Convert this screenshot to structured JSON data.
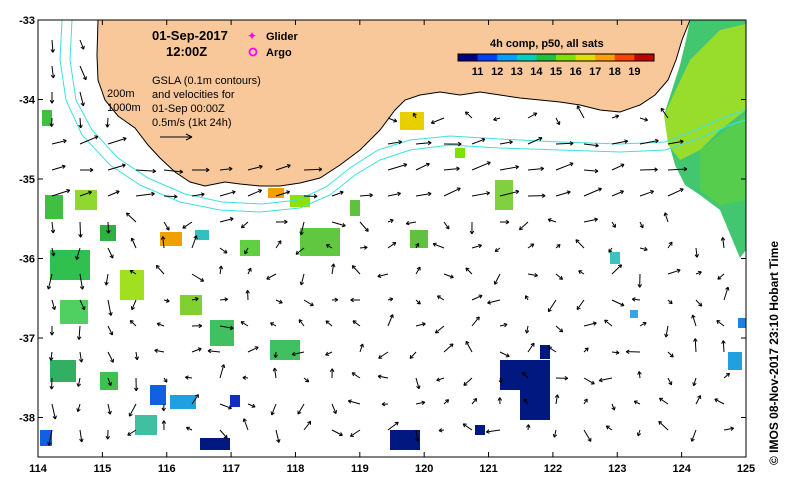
{
  "header": {
    "date": "01-Sep-2017",
    "time": "12:00Z"
  },
  "legend": {
    "glider": "Glider",
    "argo": "Argo",
    "glider_color": "#ff00ff",
    "argo_color": "#ff00ff"
  },
  "notes": {
    "contours_200": "200m",
    "contours_1000": "1000m",
    "gsla_line1": "GSLA (0.1m contours)",
    "gsla_line2": "and velocities for",
    "gsla_line3": "01-Sep 00:00Z",
    "gsla_line4": "0.5m/s (1kt 24h)"
  },
  "colorbar": {
    "title": "4h comp, p50, all sats",
    "ticks": [
      "11",
      "12",
      "13",
      "14",
      "15",
      "16",
      "17",
      "18",
      "19"
    ],
    "colors": [
      "#000080",
      "#0040ff",
      "#00a0ff",
      "#00d0c0",
      "#20c040",
      "#80e000",
      "#e0e000",
      "#ffa000",
      "#ff4000",
      "#c00000"
    ]
  },
  "axes": {
    "x_ticks": [
      "114",
      "115",
      "116",
      "117",
      "118",
      "119",
      "120",
      "121",
      "122",
      "123",
      "124",
      "125"
    ],
    "y_ticks": [
      "-33",
      "-34",
      "-35",
      "-36",
      "-37",
      "-38"
    ]
  },
  "credit": "© IMOS 08-Nov-2017 23:10 Hobart Time",
  "colors": {
    "land": "#f8c89a",
    "contour": "#40e0e0",
    "ocean": "#ffffff"
  }
}
